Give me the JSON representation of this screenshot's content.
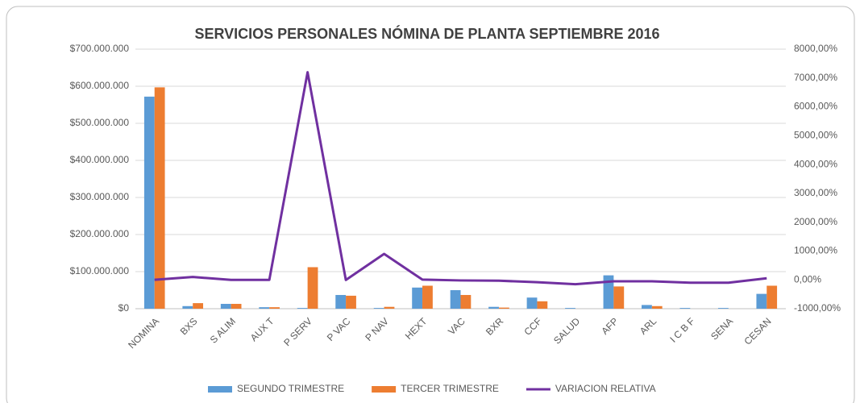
{
  "chart_data": {
    "type": "bar",
    "title": "SERVICIOS PERSONALES NÓMINA DE PLANTA SEPTIEMBRE 2016",
    "categories": [
      "NOMINA",
      "BXS",
      "S ALIM",
      "AUX T",
      "P SERV",
      "P VAC",
      "P NAV",
      "HEXT",
      "VAC",
      "BXR",
      "CCF",
      "SALUD",
      "AFP",
      "ARL",
      "I C B F",
      "SENA",
      "CESAN"
    ],
    "series": [
      {
        "name": "SEGUNDO TRIMESTRE",
        "color": "#5b9bd5",
        "type": "bar",
        "values": [
          572000000,
          7000000,
          13000000,
          4000000,
          2000000,
          37000000,
          2000000,
          57000000,
          50000000,
          5000000,
          30000000,
          2000000,
          90000000,
          10000000,
          2000000,
          2000000,
          40000000
        ]
      },
      {
        "name": "TERCER TRIMESTRE",
        "color": "#ed7d31",
        "type": "bar",
        "values": [
          597000000,
          15000000,
          13000000,
          4000000,
          112000000,
          35000000,
          5000000,
          62000000,
          37000000,
          3000000,
          20000000,
          0,
          60000000,
          7000000,
          0,
          0,
          62000000
        ]
      },
      {
        "name": "VARIACION RELATIVA",
        "color": "#7030a0",
        "type": "line",
        "axis": "y2",
        "values": [
          4,
          100,
          0,
          0,
          7200,
          -5,
          900,
          9,
          -20,
          -30,
          -80,
          -150,
          -50,
          -50,
          -100,
          -100,
          55
        ]
      }
    ],
    "ylim": [
      0,
      700000000
    ],
    "yticks": [
      {
        "value": 0,
        "label": "$0"
      },
      {
        "value": 100000000,
        "label": "$100.000.000"
      },
      {
        "value": 200000000,
        "label": "$200.000.000"
      },
      {
        "value": 300000000,
        "label": "$300.000.000"
      },
      {
        "value": 400000000,
        "label": "$400.000.000"
      },
      {
        "value": 500000000,
        "label": "$500.000.000"
      },
      {
        "value": 600000000,
        "label": "$600.000.000"
      },
      {
        "value": 700000000,
        "label": "$700.000.000"
      }
    ],
    "y2lim": [
      -1000,
      8000
    ],
    "y2ticks": [
      {
        "value": -1000,
        "label": "-1000,00%"
      },
      {
        "value": 0,
        "label": "0,00%"
      },
      {
        "value": 1000,
        "label": "1000,00%"
      },
      {
        "value": 2000,
        "label": "2000,00%"
      },
      {
        "value": 3000,
        "label": "3000,00%"
      },
      {
        "value": 4000,
        "label": "4000,00%"
      },
      {
        "value": 5000,
        "label": "5000,00%"
      },
      {
        "value": 6000,
        "label": "6000,00%"
      },
      {
        "value": 7000,
        "label": "7000,00%"
      },
      {
        "value": 8000,
        "label": "8000,00%"
      }
    ],
    "grid": true
  }
}
